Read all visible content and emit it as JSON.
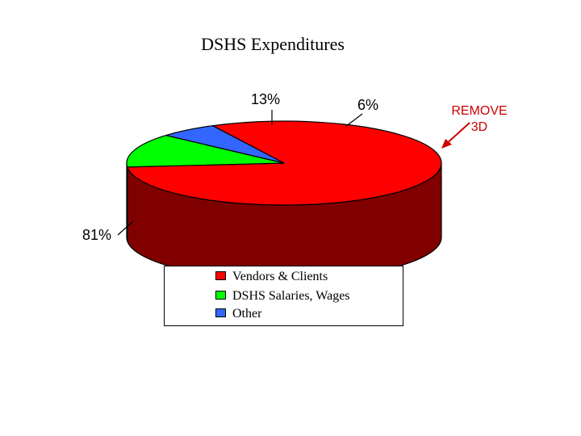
{
  "chart_data": {
    "type": "pie",
    "title": "DSHS Expenditures",
    "three_d": true,
    "categories": [
      "Vendors & Clients",
      "DSHS Salaries, Wages",
      "Other"
    ],
    "values": [
      81,
      13,
      6
    ],
    "labels": [
      "81%",
      "13%",
      "6%"
    ],
    "colors": [
      "#ff0000",
      "#00ff00",
      "#3366ff"
    ],
    "side_colors": [
      "#800000",
      "#008000",
      "#1a3380"
    ],
    "legend": {
      "position": "bottom",
      "entries": [
        "Vendors & Clients",
        "DSHS Salaries, Wages",
        "Other"
      ]
    }
  },
  "annotation": {
    "lines": [
      "REMOVE",
      "3D"
    ],
    "color": "#cc0000"
  }
}
